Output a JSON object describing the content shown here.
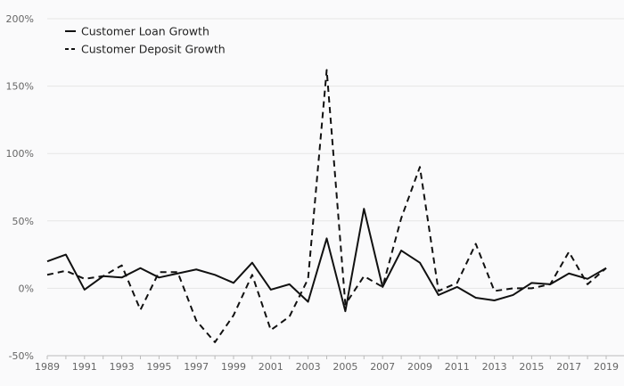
{
  "chart_data": {
    "type": "line",
    "x": [
      1989,
      1990,
      1991,
      1992,
      1993,
      1994,
      1995,
      1996,
      1997,
      1998,
      1999,
      2000,
      2001,
      2002,
      2003,
      2004,
      2005,
      2006,
      2007,
      2008,
      2009,
      2010,
      2011,
      2012,
      2013,
      2014,
      2015,
      2016,
      2017,
      2018,
      2019
    ],
    "x_tick_labels": [
      "1989",
      "1991",
      "1993",
      "1995",
      "1997",
      "1999",
      "2001",
      "2003",
      "2005",
      "2007",
      "2009",
      "2011",
      "2013",
      "2015",
      "2017",
      "2019"
    ],
    "y_tick_labels": [
      "200%",
      "150%",
      "100%",
      "50%",
      "0%",
      "-50%"
    ],
    "y_ticks": [
      200,
      150,
      100,
      50,
      0,
      -50
    ],
    "ylim": [
      -50,
      200
    ],
    "xlim": [
      1989,
      2019
    ],
    "grid": "horizontal",
    "legend_position": "top-left",
    "series": [
      {
        "name": "Customer Loan Growth",
        "style": "solid",
        "color": "#111111",
        "values": [
          20,
          25,
          -1,
          9,
          8,
          15,
          8,
          11,
          14,
          10,
          4,
          19,
          -1,
          3,
          -10,
          37,
          -17,
          59,
          1,
          28,
          19,
          -5,
          1,
          -7,
          -9,
          -5,
          4,
          3,
          11,
          7,
          15
        ]
      },
      {
        "name": "Customer Deposit Growth",
        "style": "dashed",
        "color": "#111111",
        "values": [
          10,
          13,
          7,
          9,
          17,
          -16,
          12,
          12,
          -24,
          -40,
          -20,
          10,
          -31,
          -21,
          7,
          162,
          -12,
          9,
          1,
          52,
          90,
          -2,
          4,
          33,
          -2,
          0,
          0,
          3,
          27,
          3,
          15
        ]
      }
    ]
  }
}
